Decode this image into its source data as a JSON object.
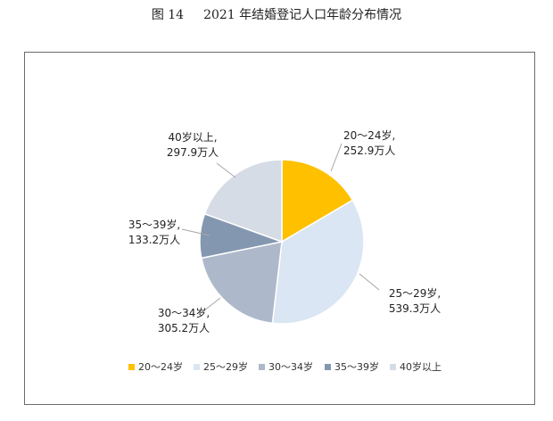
{
  "caption": {
    "number": "图 14",
    "text": "2021 年结婚登记人口年龄分布情况"
  },
  "chart_data": {
    "type": "pie",
    "title": "",
    "unit": "万人",
    "slices": [
      {
        "name": "20～24岁",
        "value": 252.9,
        "value_label": "252.9万人",
        "label_lines": [
          "20～24岁,",
          "252.9万人"
        ],
        "color": "#ffc000"
      },
      {
        "name": "25～29岁",
        "value": 539.3,
        "value_label": "539.3万人",
        "label_lines": [
          "25～29岁,",
          "539.3万人"
        ],
        "color": "#dae6f3"
      },
      {
        "name": "30～34岁",
        "value": 305.2,
        "value_label": "305.2万人",
        "label_lines": [
          "30～34岁,",
          "305.2万人"
        ],
        "color": "#adb9ca"
      },
      {
        "name": "35～39岁",
        "value": 133.2,
        "value_label": "133.2万人",
        "label_lines": [
          "35～39岁,",
          "133.2万人"
        ],
        "color": "#8497b0"
      },
      {
        "name": "40岁以上",
        "value": 297.9,
        "value_label": "297.9万人",
        "label_lines": [
          "40岁以上,",
          "297.9万人"
        ],
        "color": "#d6dce5"
      }
    ],
    "legend": [
      "20～24岁",
      "25～29岁",
      "30～34岁",
      "35～39岁",
      "40岁以上"
    ],
    "legend_position": "bottom"
  }
}
